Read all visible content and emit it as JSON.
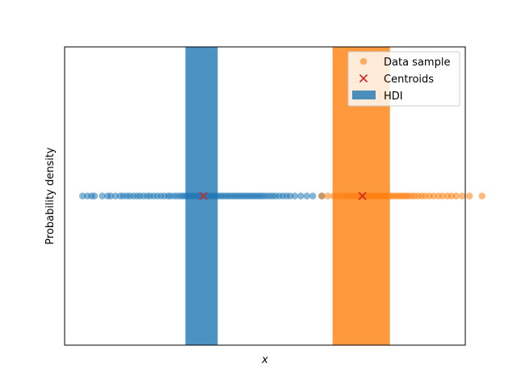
{
  "chart_data": {
    "type": "scatter",
    "xlabel": "x",
    "ylabel": "Probability density",
    "xlim": [
      -3.35,
      3.35
    ],
    "ylim": [
      -1,
      1
    ],
    "x_ticks_shown": false,
    "y_ticks_shown": false,
    "legend_position": "upper right",
    "series": [
      {
        "name": "Data sample",
        "kind": "points",
        "clusters": [
          {
            "color": "#1f77b4",
            "y": 0,
            "x": [
              -3.05,
              -2.97,
              -2.9,
              -2.85,
              -2.72,
              -2.63,
              -2.58,
              -2.5,
              -2.42,
              -2.37,
              -2.31,
              -2.26,
              -2.2,
              -2.14,
              -2.09,
              -2.03,
              -1.97,
              -1.92,
              -1.86,
              -1.8,
              -1.74,
              -1.68,
              -1.62,
              -1.58,
              -1.52,
              -1.47,
              -1.42,
              -1.38,
              -1.34,
              -1.3,
              -1.26,
              -1.22,
              -1.18,
              -1.14,
              -1.1,
              -1.06,
              -1.02,
              -0.98,
              -0.94,
              -0.9,
              -0.86,
              -0.82,
              -0.78,
              -0.74,
              -0.7,
              -0.66,
              -0.62,
              -0.58,
              -0.54,
              -0.5,
              -0.46,
              -0.42,
              -0.38,
              -0.34,
              -0.3,
              -0.26,
              -0.22,
              -0.18,
              -0.14,
              -0.1,
              -0.06,
              -0.02,
              0.03,
              0.08,
              0.13,
              0.18,
              0.24,
              0.3,
              0.36,
              0.42,
              0.5,
              0.6,
              0.7,
              0.8,
              0.95
            ]
          },
          {
            "color": "#ff7f0e",
            "y": 0,
            "x": [
              0.95,
              1.05,
              1.15,
              1.22,
              1.29,
              1.35,
              1.4,
              1.45,
              1.5,
              1.55,
              1.6,
              1.64,
              1.68,
              1.72,
              1.76,
              1.8,
              1.84,
              1.88,
              1.92,
              1.96,
              2.0,
              2.04,
              2.08,
              2.12,
              2.16,
              2.2,
              2.24,
              2.28,
              2.32,
              2.36,
              2.4,
              2.45,
              2.5,
              2.56,
              2.62,
              2.68,
              2.75,
              2.82,
              2.9,
              2.97,
              3.05,
              3.12,
              3.2,
              3.3,
              3.42,
              3.63
            ]
          }
        ]
      },
      {
        "name": "Centroids",
        "kind": "markers",
        "points": [
          {
            "x": -1.03,
            "y": 0,
            "color": "#d62728"
          },
          {
            "x": 1.63,
            "y": 0,
            "color": "#d62728"
          }
        ]
      },
      {
        "name": "HDI",
        "kind": "spans",
        "spans": [
          {
            "x0": -1.33,
            "x1": -0.79,
            "color": "#1f77b4"
          },
          {
            "x0": 1.13,
            "x1": 2.09,
            "color": "#ff7f0e"
          }
        ]
      }
    ]
  }
}
